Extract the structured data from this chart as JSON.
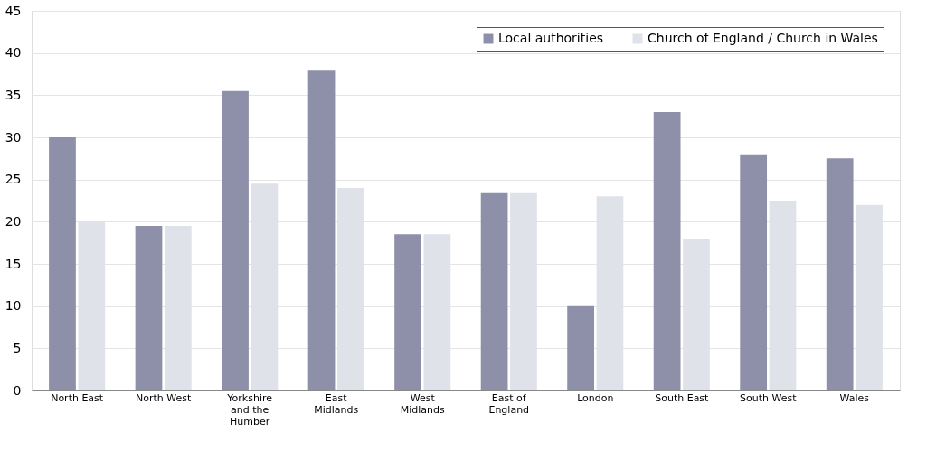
{
  "chart_data": {
    "type": "bar",
    "categories": [
      "North East",
      "North West",
      "Yorkshire and the Humber",
      "East Midlands",
      "West Midlands",
      "East of England",
      "London",
      "South East",
      "South West",
      "Wales"
    ],
    "series": [
      {
        "name": "Local authorities",
        "color": "#8e8fa8",
        "values": [
          30,
          19.5,
          35.5,
          38,
          18.5,
          23.5,
          10,
          33,
          28,
          27.5
        ]
      },
      {
        "name": "Church of England / Church in Wales",
        "color": "#e0e2ea",
        "values": [
          20,
          19.5,
          24.5,
          24,
          18.5,
          23.5,
          23,
          18,
          22.5,
          22
        ]
      }
    ],
    "ylim": [
      0,
      45
    ],
    "yticks": [
      0,
      5,
      10,
      15,
      20,
      25,
      30,
      35,
      40,
      45
    ],
    "grid": "y",
    "legend": "top right"
  }
}
